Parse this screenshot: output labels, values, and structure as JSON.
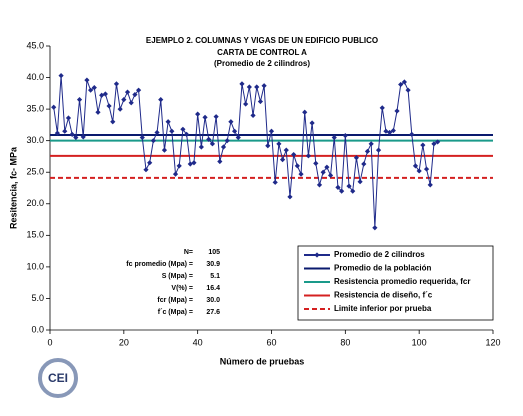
{
  "chart_data": {
    "type": "line",
    "title": "EJEMPLO 2.  COLUMNAS Y VIGAS DE UN EDIFICIO PUBLICO",
    "subtitle": "CARTA DE CONTROL A",
    "note": "(Promedio de 2 cilindros)",
    "x_label": "Número de pruebas",
    "y_label": "Resitencia, fc- MPa",
    "xlim": [
      0,
      120
    ],
    "xticks": [
      0,
      20,
      40,
      60,
      80,
      100,
      120
    ],
    "ylim": [
      0,
      45
    ],
    "yticks": [
      {
        "value": 0,
        "label": "0.0"
      },
      {
        "value": 5,
        "label": "5.0"
      },
      {
        "value": 10,
        "label": "10.0"
      },
      {
        "value": 15,
        "label": "15.0"
      },
      {
        "value": 20,
        "label": "20.0"
      },
      {
        "value": 25,
        "label": "25.0"
      },
      {
        "value": 30,
        "label": "30.0"
      },
      {
        "value": 35,
        "label": "35.0"
      },
      {
        "value": 40,
        "label": "40.0"
      },
      {
        "value": 45,
        "label": "45.0"
      }
    ],
    "x": [
      1,
      2,
      3,
      4,
      5,
      6,
      7,
      8,
      9,
      10,
      11,
      12,
      13,
      14,
      15,
      16,
      17,
      18,
      19,
      20,
      21,
      22,
      23,
      24,
      25,
      26,
      27,
      28,
      29,
      30,
      31,
      32,
      33,
      34,
      35,
      36,
      37,
      38,
      39,
      40,
      41,
      42,
      43,
      44,
      45,
      46,
      47,
      48,
      49,
      50,
      51,
      52,
      53,
      54,
      55,
      56,
      57,
      58,
      59,
      60,
      61,
      62,
      63,
      64,
      65,
      66,
      67,
      68,
      69,
      70,
      71,
      72,
      73,
      74,
      75,
      76,
      77,
      78,
      79,
      80,
      81,
      82,
      83,
      84,
      85,
      86,
      87,
      88,
      89,
      90,
      91,
      92,
      93,
      94,
      95,
      96,
      97,
      98,
      99,
      100,
      101,
      102,
      103,
      104,
      105
    ],
    "series": [
      {
        "name": "Promedio de 2 cilindros",
        "color": "#1f2a8a",
        "values": [
          35.3,
          31.2,
          40.3,
          31.5,
          33.6,
          31.0,
          30.5,
          36.5,
          30.6,
          39.6,
          38.0,
          38.4,
          34.5,
          37.2,
          37.4,
          35.5,
          33.0,
          39.0,
          35.0,
          36.5,
          37.7,
          36.0,
          37.3,
          38.0,
          30.5,
          25.4,
          26.5,
          30.0,
          31.3,
          36.5,
          28.5,
          33.0,
          31.5,
          24.7,
          26.0,
          31.8,
          31.0,
          26.3,
          26.5,
          34.2,
          29.0,
          33.7,
          30.2,
          29.5,
          33.8,
          26.7,
          29.0,
          30.0,
          33.0,
          31.5,
          30.5,
          39.0,
          35.8,
          38.5,
          34.0,
          38.5,
          36.2,
          38.7,
          29.2,
          31.5,
          23.4,
          29.5,
          27.0,
          28.5,
          21.1,
          27.8,
          26.0,
          24.7,
          34.5,
          27.6,
          32.8,
          26.4,
          23.0,
          25.0,
          25.8,
          24.5,
          30.5,
          22.6,
          22.0,
          30.8,
          22.8,
          22.0,
          27.3,
          23.5,
          26.3,
          28.3,
          29.5,
          16.2,
          28.5,
          35.2,
          31.5,
          31.3,
          31.6,
          34.7,
          38.9,
          39.3,
          38.0,
          31.0,
          26.0,
          25.2,
          29.3,
          25.5,
          23.0,
          29.5,
          29.8
        ]
      }
    ],
    "hlines": [
      {
        "name": "Promedio de la población",
        "color": "#0a1a6e",
        "value": 30.9,
        "dash": false
      },
      {
        "name": "Resistencia promedio requerida, fcr",
        "color": "#1a9a8a",
        "value": 30.0,
        "dash": false
      },
      {
        "name": "Resistencia de diseño, f´c",
        "color": "#d42020",
        "value": 27.6,
        "dash": false
      },
      {
        "name": "Limite inferior por prueba",
        "color": "#d42020",
        "value": 24.1,
        "dash": true
      }
    ],
    "stats": [
      [
        "N=",
        "105"
      ],
      [
        "fc promedio (Mpa) =",
        "30.9"
      ],
      [
        "S (Mpa) =",
        "5.1"
      ],
      [
        "V(%) =",
        "16.4"
      ],
      [
        "fcr (Mpa) =",
        "30.0"
      ],
      [
        "f´c (Mpa) =",
        "27.6"
      ]
    ],
    "logo": "CEI"
  }
}
